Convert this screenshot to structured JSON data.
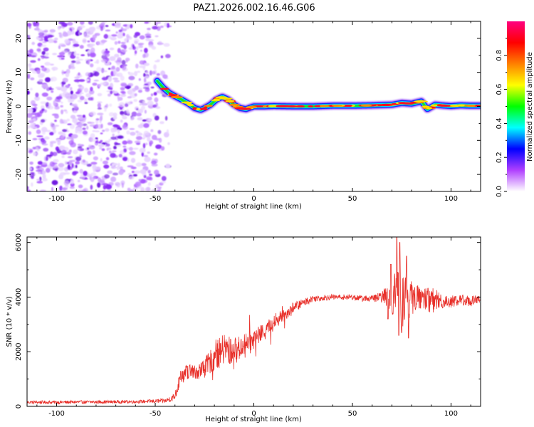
{
  "title": "PAZ1.2026.002.16.46.G06",
  "chart_data": [
    {
      "type": "heatmap",
      "name": "spectrogram",
      "xlabel": "Height of straight line (km)",
      "ylabel": "Frequency (Hz)",
      "xlim": [
        -115,
        115
      ],
      "ylim": [
        -25,
        25
      ],
      "xticks": [
        -100,
        -50,
        0,
        50,
        100
      ],
      "yticks": [
        -20,
        -10,
        0,
        10,
        20
      ],
      "noise_region_x": [
        -115,
        -43
      ],
      "signal_ridge": {
        "x": [
          -49,
          -46,
          -43,
          -40,
          -36,
          -33,
          -30,
          -27,
          -25,
          -22,
          -19,
          -16,
          -13,
          -10,
          -7,
          -4,
          0,
          5,
          10,
          20,
          30,
          40,
          50,
          60,
          70,
          75,
          80,
          85,
          88,
          92,
          95,
          100,
          105,
          110,
          115
        ],
        "y": [
          7.5,
          5.5,
          4,
          3,
          1.8,
          0.8,
          -0.5,
          -1,
          -0.5,
          0.5,
          2,
          2.8,
          2,
          0.5,
          -0.5,
          -0.8,
          0,
          0,
          0.1,
          0,
          0,
          0.2,
          0.2,
          0.3,
          0.5,
          1,
          0.8,
          1.5,
          -0.8,
          0.5,
          0.3,
          0.1,
          0.3,
          0.2,
          0.2
        ]
      },
      "colorbar": {
        "label": "Normalized spectral amplitude",
        "ticks": [
          0.0,
          0.2,
          0.4,
          0.6,
          0.8
        ],
        "tick_labels": [
          "0.0",
          "0.2",
          "0.4",
          "0.6",
          "0.8"
        ],
        "range": [
          0,
          1
        ],
        "colors": [
          "#ffffff",
          "#b040ff",
          "#0000ff",
          "#00ffff",
          "#00ff00",
          "#ffff00",
          "#ff8000",
          "#ff0000",
          "#ff0080"
        ]
      }
    },
    {
      "type": "line",
      "name": "snr",
      "xlabel": "Height of straight line (km)",
      "ylabel": "SNR (10 * v/v)",
      "xlim": [
        -115,
        115
      ],
      "ylim": [
        0,
        6200
      ],
      "xticks": [
        -100,
        -50,
        0,
        50,
        100
      ],
      "yticks": [
        0,
        2000,
        4000,
        6000
      ],
      "color": "#e8302a",
      "envelope": {
        "x": [
          -115,
          -100,
          -80,
          -60,
          -45,
          -40,
          -37,
          -33,
          -30,
          -25,
          -20,
          -15,
          -10,
          -5,
          0,
          5,
          10,
          15,
          20,
          25,
          30,
          40,
          50,
          55,
          60,
          65,
          70,
          75,
          80,
          85,
          90,
          95,
          100,
          105,
          110,
          115
        ],
        "mean": [
          150,
          150,
          160,
          170,
          200,
          350,
          1100,
          1300,
          1250,
          1400,
          1800,
          2100,
          2000,
          2250,
          2450,
          2750,
          3050,
          3350,
          3600,
          3800,
          3950,
          4000,
          4000,
          3950,
          3950,
          4000,
          4050,
          4100,
          3950,
          4000,
          3900,
          3850,
          3850,
          3900,
          3850,
          3900
        ],
        "amplitude": [
          60,
          60,
          60,
          60,
          80,
          150,
          300,
          300,
          280,
          350,
          500,
          600,
          500,
          400,
          350,
          300,
          280,
          250,
          200,
          150,
          120,
          100,
          100,
          120,
          120,
          200,
          700,
          1300,
          600,
          400,
          500,
          300,
          250,
          200,
          200,
          200
        ]
      },
      "spikes": [
        {
          "x": 68,
          "value": 3200
        },
        {
          "x": 69.5,
          "value": 5200
        },
        {
          "x": 72.5,
          "value": 6200
        },
        {
          "x": 73.5,
          "value": 2600
        },
        {
          "x": 74,
          "value": 6000
        },
        {
          "x": 75,
          "value": 2700
        },
        {
          "x": 77.5,
          "value": 5500
        },
        {
          "x": 78.5,
          "value": 2500
        }
      ]
    }
  ]
}
